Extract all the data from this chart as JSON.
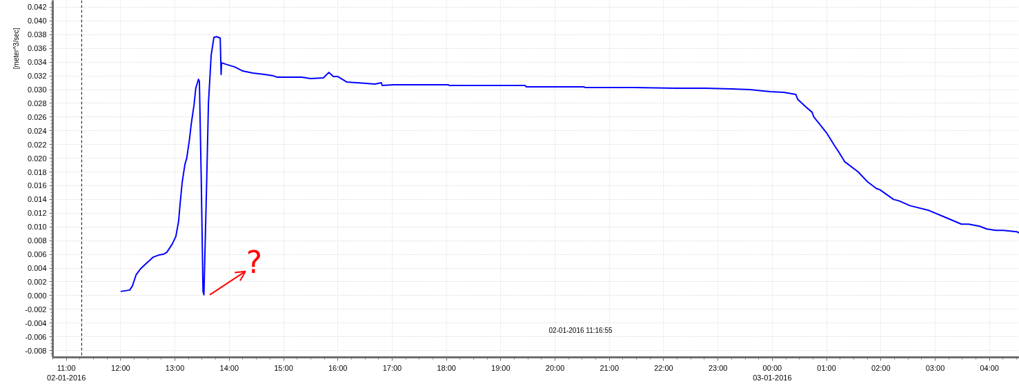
{
  "chart_data": {
    "type": "line",
    "ylabel": "[meter^3/sec]",
    "x": [
      "2016-01-02T12:00",
      "2016-01-02T12:10",
      "2016-01-02T12:13",
      "2016-01-02T12:17",
      "2016-01-02T12:22",
      "2016-01-02T12:26",
      "2016-01-02T12:36",
      "2016-01-02T12:42",
      "2016-01-02T12:47",
      "2016-01-02T12:51",
      "2016-01-02T12:57",
      "2016-01-02T13:01",
      "2016-01-02T13:04",
      "2016-01-02T13:06",
      "2016-01-02T13:08",
      "2016-01-02T13:11",
      "2016-01-02T13:13",
      "2016-01-02T13:16",
      "2016-01-02T13:18",
      "2016-01-02T13:21",
      "2016-01-02T13:23",
      "2016-01-02T13:26",
      "2016-01-02T13:27",
      "2016-01-02T13:29",
      "2016-01-02T13:31",
      "2016-01-02T13:32",
      "2016-01-02T13:35",
      "2016-01-02T13:37",
      "2016-01-02T13:40",
      "2016-01-02T13:43",
      "2016-01-02T13:46",
      "2016-01-02T13:50",
      "2016-01-02T13:51",
      "2016-01-02T13:51:30",
      "2016-01-02T13:56",
      "2016-01-02T14:06",
      "2016-01-02T14:15",
      "2016-01-02T14:26",
      "2016-01-02T14:39",
      "2016-01-02T14:49",
      "2016-01-02T14:53",
      "2016-01-02T15:20",
      "2016-01-02T15:30",
      "2016-01-02T15:44",
      "2016-01-02T15:50",
      "2016-01-02T15:55",
      "2016-01-02T16:00",
      "2016-01-02T16:10",
      "2016-01-02T16:21",
      "2016-01-02T16:41",
      "2016-01-02T16:48",
      "2016-01-02T16:49",
      "2016-01-02T17:01",
      "2016-01-02T18:02",
      "2016-01-02T18:03",
      "2016-01-02T19:27",
      "2016-01-02T19:28",
      "2016-01-02T20:32",
      "2016-01-02T20:33",
      "2016-01-02T21:27",
      "2016-01-02T22:13",
      "2016-01-02T22:46",
      "2016-01-02T23:15",
      "2016-01-02T23:35",
      "2016-01-02T23:58",
      "2016-01-03T00:13",
      "2016-01-03T00:26",
      "2016-01-03T00:28",
      "2016-01-03T00:37",
      "2016-01-03T00:44",
      "2016-01-03T00:46",
      "2016-01-03T00:54",
      "2016-01-03T01:00",
      "2016-01-03T01:09",
      "2016-01-03T01:14",
      "2016-01-03T01:20",
      "2016-01-03T01:35",
      "2016-01-03T01:45",
      "2016-01-03T01:55",
      "2016-01-03T01:59",
      "2016-01-03T02:14",
      "2016-01-03T02:20",
      "2016-01-03T02:32",
      "2016-01-03T02:53",
      "2016-01-03T03:11",
      "2016-01-03T03:29",
      "2016-01-03T03:37",
      "2016-01-03T03:49",
      "2016-01-03T03:57",
      "2016-01-03T04:07",
      "2016-01-03T04:15",
      "2016-01-03T04:30",
      "2016-01-03T04:33"
    ],
    "series": [
      {
        "color": "#0000ff",
        "values": [
          0.0006,
          0.0008,
          0.0014,
          0.003,
          0.0039,
          0.0044,
          0.0056,
          0.0059,
          0.006,
          0.0063,
          0.0075,
          0.0086,
          0.0108,
          0.0138,
          0.0165,
          0.0191,
          0.02,
          0.0227,
          0.025,
          0.0277,
          0.0302,
          0.0315,
          0.0312,
          0.0173,
          0.0006,
          0.0001,
          0.0163,
          0.028,
          0.035,
          0.0376,
          0.0377,
          0.0375,
          0.0322,
          0.0339,
          0.0337,
          0.0333,
          0.0327,
          0.0324,
          0.0322,
          0.032,
          0.0318,
          0.0318,
          0.0316,
          0.0317,
          0.0325,
          0.0319,
          0.0319,
          0.0311,
          0.031,
          0.0308,
          0.031,
          0.0306,
          0.0307,
          0.0307,
          0.0306,
          0.0306,
          0.0304,
          0.0304,
          0.0303,
          0.0303,
          0.0302,
          0.0302,
          0.0301,
          0.03,
          0.0297,
          0.0296,
          0.0293,
          0.0286,
          0.0275,
          0.0267,
          0.026,
          0.0247,
          0.0237,
          0.0218,
          0.0208,
          0.0195,
          0.018,
          0.0166,
          0.0156,
          0.0154,
          0.014,
          0.0138,
          0.0131,
          0.0124,
          0.0114,
          0.0104,
          0.0104,
          0.0101,
          0.0097,
          0.0095,
          0.0095,
          0.0093,
          0.0091
        ]
      }
    ],
    "xlim": [
      "2016-01-02T10:45",
      "2016-01-03T04:33"
    ],
    "xticks": [
      {
        "value": "2016-01-02T11:00",
        "label": "11:00\n02-01-2016"
      },
      {
        "value": "2016-01-02T12:00",
        "label": "12:00"
      },
      {
        "value": "2016-01-02T13:00",
        "label": "13:00"
      },
      {
        "value": "2016-01-02T14:00",
        "label": "14:00"
      },
      {
        "value": "2016-01-02T15:00",
        "label": "15:00"
      },
      {
        "value": "2016-01-02T16:00",
        "label": "16:00"
      },
      {
        "value": "2016-01-02T17:00",
        "label": "17:00"
      },
      {
        "value": "2016-01-02T18:00",
        "label": "18:00"
      },
      {
        "value": "2016-01-02T19:00",
        "label": "19:00"
      },
      {
        "value": "2016-01-02T20:00",
        "label": "20:00"
      },
      {
        "value": "2016-01-02T21:00",
        "label": "21:00"
      },
      {
        "value": "2016-01-02T22:00",
        "label": "22:00"
      },
      {
        "value": "2016-01-02T23:00",
        "label": "23:00"
      },
      {
        "value": "2016-01-03T00:00",
        "label": "00:00\n03-01-2016"
      },
      {
        "value": "2016-01-03T01:00",
        "label": "01:00"
      },
      {
        "value": "2016-01-03T02:00",
        "label": "02:00"
      },
      {
        "value": "2016-01-03T03:00",
        "label": "03:00"
      },
      {
        "value": "2016-01-03T04:00",
        "label": "04:00"
      }
    ],
    "ylim": [
      -0.009,
      0.043
    ],
    "yticks": [
      -0.008,
      -0.006,
      -0.004,
      -0.002,
      {
        "value": 0,
        "label": "0.000"
      },
      0.002,
      0.004,
      0.006,
      0.008,
      {
        "value": 0.01,
        "label": "0.010"
      },
      0.012,
      0.014,
      0.016,
      0.018,
      {
        "value": 0.02,
        "label": "0.020"
      },
      0.022,
      0.024,
      0.026,
      0.028,
      {
        "value": 0.03,
        "label": "0.030"
      },
      0.032,
      0.034,
      0.036,
      0.038,
      {
        "value": 0.04,
        "label": "0.040"
      },
      0.042
    ],
    "grid": true,
    "ref_lines": [
      {
        "axis": "x",
        "value": "2016-01-02T11:16:55",
        "label": "02-01-2016 11:16:55",
        "color": "#000000",
        "line_style": "dashed"
      }
    ],
    "annotations": [
      {
        "text": "?",
        "x": "2016-01-02T13:32",
        "y": 0.0001
      }
    ]
  }
}
